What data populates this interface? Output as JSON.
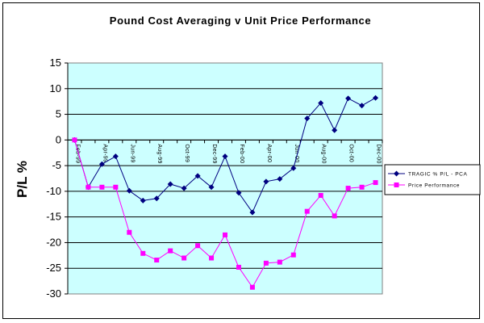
{
  "chart_data": {
    "type": "line",
    "title": "Pound Cost Averaging v Unit Price Performance",
    "ylabel": "P/L %",
    "xlabel": "",
    "ylim": [
      -30,
      15
    ],
    "yticks": [
      15,
      10,
      5,
      0,
      -5,
      -10,
      -15,
      -20,
      -25,
      -30
    ],
    "grid": true,
    "legend_position": "right",
    "plot_background": "#ccffff",
    "categories": [
      "Feb-99",
      "Mar-99",
      "Apr-99",
      "May-99",
      "Jun-99",
      "Jul-99",
      "Aug-99",
      "Sep-99",
      "Oct-99",
      "Nov-99",
      "Dec-99",
      "Jan-00",
      "Feb-00",
      "Mar-00",
      "Apr-00",
      "May-00",
      "Jun-00",
      "Jul-00",
      "Aug-00",
      "Sep-00",
      "Oct-00",
      "Nov-00",
      "Dec-00"
    ],
    "x_tick_labels": [
      "Feb-99",
      "",
      "Apr-99",
      "",
      "Jun-99",
      "",
      "Aug-99",
      "",
      "Oct-99",
      "",
      "Dec-99",
      "",
      "Feb-00",
      "",
      "Apr-00",
      "",
      "Jun-00",
      "",
      "Aug-00",
      "",
      "Oct-00",
      "",
      "Dec-00"
    ],
    "series": [
      {
        "name": "TRAGIC % P/L - PCA",
        "color": "#000080",
        "marker": "diamond",
        "values": [
          0,
          -9.2,
          -4.7,
          -3.2,
          -9.9,
          -11.8,
          -11.4,
          -8.6,
          -9.4,
          -7.0,
          -9.2,
          -3.2,
          -10.3,
          -14.1,
          -8.1,
          -7.6,
          -5.5,
          4.2,
          7.2,
          1.9,
          8.1,
          6.7,
          8.2
        ]
      },
      {
        "name": "Price Performance",
        "color": "#ff00ff",
        "marker": "square",
        "values": [
          0,
          -9.2,
          -9.2,
          -9.2,
          -18.0,
          -22.1,
          -23.4,
          -21.6,
          -23.0,
          -20.6,
          -23.0,
          -18.5,
          -24.8,
          -28.7,
          -24.0,
          -23.8,
          -22.4,
          -13.9,
          -10.8,
          -14.8,
          -9.4,
          -9.2,
          -8.3
        ]
      }
    ]
  }
}
